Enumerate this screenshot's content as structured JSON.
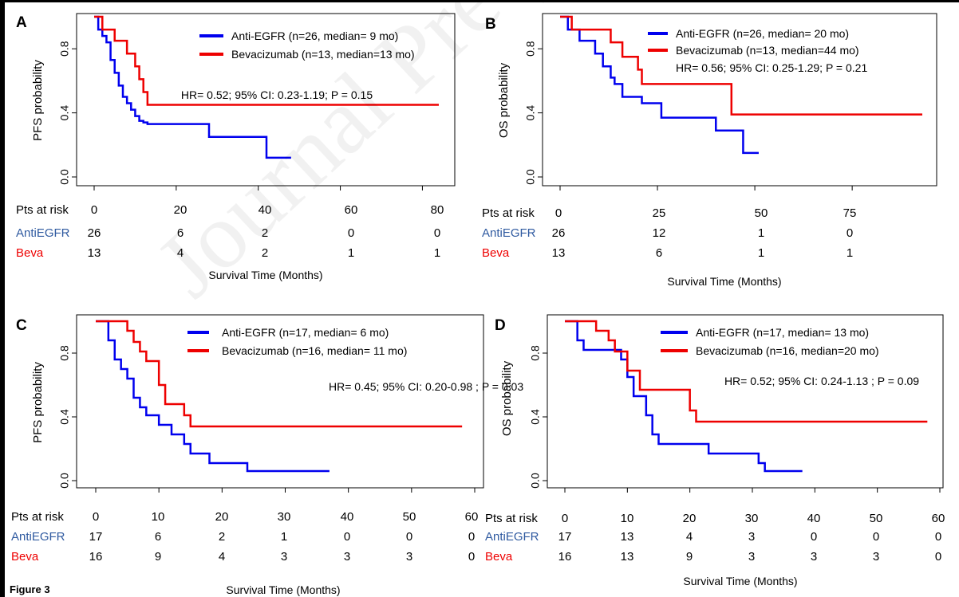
{
  "figure_caption": "Figure 3",
  "watermark": "Journal Pre-proof",
  "colors": {
    "anti_egfr": "#0000ee",
    "beva": "#ee0000",
    "risk_anti": "#2f5aa0",
    "risk_beva": "#ee0000"
  },
  "chart_data": [
    {
      "panel": "A",
      "type": "line",
      "step": true,
      "ylabel": "PFS probability",
      "xlabel": "Survival Time (Months)",
      "xlim": [
        0,
        84
      ],
      "ylim": [
        0,
        1
      ],
      "yticks": [
        "0.0",
        "0.4",
        "0.8"
      ],
      "xticks": [
        "0",
        "20",
        "40",
        "60",
        "80"
      ],
      "legend": [
        "Anti-EGFR (n=26, median= 9 mo)",
        "Bevacizumab (n=13, median=13 mo)"
      ],
      "annotation": "HR= 0.52; 95% CI: 0.23-1.19; P = 0.15",
      "series": [
        {
          "name": "Anti-EGFR (n=26, median= 9 mo)",
          "color": "#0000ee",
          "x": [
            0,
            1,
            2,
            3,
            4,
            5,
            6,
            7,
            8,
            9,
            10,
            11,
            12,
            13,
            28,
            42,
            48
          ],
          "y": [
            1.0,
            0.92,
            0.88,
            0.84,
            0.73,
            0.65,
            0.57,
            0.5,
            0.46,
            0.42,
            0.38,
            0.35,
            0.34,
            0.33,
            0.25,
            0.12,
            0.12
          ]
        },
        {
          "name": "Bevacizumab (n=13, median=13 mo)",
          "color": "#ee0000",
          "x": [
            0,
            2,
            5,
            8,
            10,
            11,
            12,
            13,
            84
          ],
          "y": [
            1.0,
            0.92,
            0.85,
            0.77,
            0.69,
            0.61,
            0.53,
            0.45,
            0.45
          ]
        }
      ],
      "risk_table": {
        "label": "Pts at risk",
        "times": [
          "0",
          "20",
          "40",
          "60",
          "80"
        ],
        "rows": [
          {
            "name": "AntiEGFR",
            "values": [
              "26",
              "6",
              "2",
              "0",
              "0"
            ]
          },
          {
            "name": "Beva",
            "values": [
              "13",
              "4",
              "2",
              "1",
              "1"
            ]
          }
        ]
      }
    },
    {
      "panel": "B",
      "type": "line",
      "step": true,
      "ylabel": "OS probability",
      "xlabel": "Survival Time (Months)",
      "xlim": [
        0,
        93
      ],
      "ylim": [
        0,
        1
      ],
      "yticks": [
        "0.0",
        "0.4",
        "0.8"
      ],
      "xticks": [
        "0",
        "25",
        "50",
        "75"
      ],
      "legend": [
        "Anti-EGFR (n=26, median= 20 mo)",
        "Bevacizumab (n=13, median=44 mo)"
      ],
      "annotation": "HR= 0.56; 95% CI: 0.25-1.29; P = 0.21",
      "series": [
        {
          "name": "Anti-EGFR (n=26, median= 20 mo)",
          "color": "#0000ee",
          "x": [
            0,
            2,
            5,
            9,
            11,
            13,
            14,
            16,
            21,
            26,
            40,
            47,
            51
          ],
          "y": [
            1.0,
            0.92,
            0.85,
            0.77,
            0.69,
            0.62,
            0.58,
            0.5,
            0.46,
            0.37,
            0.29,
            0.15,
            0.15
          ]
        },
        {
          "name": "Bevacizumab (n=13, median=44 mo)",
          "color": "#ee0000",
          "x": [
            0,
            3,
            13,
            16,
            20,
            21,
            44,
            93
          ],
          "y": [
            1.0,
            0.92,
            0.84,
            0.75,
            0.67,
            0.58,
            0.39,
            0.39
          ]
        }
      ],
      "risk_table": {
        "label": "Pts at risk",
        "times": [
          "0",
          "25",
          "50",
          "75"
        ],
        "rows": [
          {
            "name": "AntiEGFR",
            "values": [
              "26",
              "12",
              "1",
              "0"
            ]
          },
          {
            "name": "Beva",
            "values": [
              "13",
              "6",
              "1",
              "1"
            ]
          }
        ]
      }
    },
    {
      "panel": "C",
      "type": "line",
      "step": true,
      "ylabel": "PFS probability",
      "xlabel": "Survival Time (Months)",
      "xlim": [
        0,
        60
      ],
      "ylim": [
        0,
        1
      ],
      "yticks": [
        "0.0",
        "0.4",
        "0.8"
      ],
      "xticks": [
        "0",
        "10",
        "20",
        "30",
        "40",
        "50",
        "60"
      ],
      "legend": [
        "Anti-EGFR (n=17, median= 6 mo)",
        "Bevacizumab (n=16, median= 11 mo)"
      ],
      "annotation": "HR= 0.45; 95% CI: 0.20-0.98 ; P = 0.03",
      "series": [
        {
          "name": "Anti-EGFR (n=17, median= 6 mo)",
          "color": "#0000ee",
          "x": [
            0,
            2,
            3,
            4,
            5,
            6,
            7,
            8,
            10,
            12,
            14,
            15,
            18,
            24,
            37
          ],
          "y": [
            1.0,
            0.88,
            0.76,
            0.7,
            0.64,
            0.52,
            0.46,
            0.41,
            0.35,
            0.29,
            0.23,
            0.17,
            0.11,
            0.06,
            0.06
          ]
        },
        {
          "name": "Bevacizumab (n=16, median= 11 mo)",
          "color": "#ee0000",
          "x": [
            0,
            5,
            6,
            7,
            8,
            10,
            11,
            14,
            15,
            58
          ],
          "y": [
            1.0,
            0.94,
            0.87,
            0.81,
            0.75,
            0.6,
            0.48,
            0.41,
            0.34,
            0.34
          ]
        }
      ],
      "risk_table": {
        "label": "Pts at risk",
        "times": [
          "0",
          "10",
          "20",
          "30",
          "40",
          "50",
          "60"
        ],
        "rows": [
          {
            "name": "AntiEGFR",
            "values": [
              "17",
              "6",
              "2",
              "1",
              "0",
              "0",
              "0"
            ]
          },
          {
            "name": "Beva",
            "values": [
              "16",
              "9",
              "4",
              "3",
              "3",
              "3",
              "0"
            ]
          }
        ]
      }
    },
    {
      "panel": "D",
      "type": "line",
      "step": true,
      "ylabel": "OS probability",
      "xlabel": "Survival Time (Months)",
      "xlim": [
        0,
        60
      ],
      "ylim": [
        0,
        1
      ],
      "yticks": [
        "0.0",
        "0.4",
        "0.8"
      ],
      "xticks": [
        "0",
        "10",
        "20",
        "30",
        "40",
        "50",
        "60"
      ],
      "legend": [
        "Anti-EGFR (n=17, median= 13 mo)",
        "Bevacizumab (n=16, median=20 mo)"
      ],
      "annotation": "HR= 0.52; 95% CI: 0.24-1.13 ; P = 0.09",
      "series": [
        {
          "name": "Anti-EGFR (n=17, median= 13 mo)",
          "color": "#0000ee",
          "x": [
            0,
            2,
            3,
            9,
            10,
            11,
            13,
            14,
            15,
            23,
            31,
            32,
            38
          ],
          "y": [
            1.0,
            0.88,
            0.82,
            0.76,
            0.65,
            0.53,
            0.41,
            0.29,
            0.23,
            0.17,
            0.11,
            0.06,
            0.06
          ]
        },
        {
          "name": "Bevacizumab (n=16, median=20 mo)",
          "color": "#ee0000",
          "x": [
            0,
            5,
            7,
            8,
            10,
            12,
            20,
            21,
            58
          ],
          "y": [
            1.0,
            0.94,
            0.88,
            0.81,
            0.69,
            0.57,
            0.44,
            0.37,
            0.37
          ]
        }
      ],
      "risk_table": {
        "label": "Pts at risk",
        "times": [
          "0",
          "10",
          "20",
          "30",
          "40",
          "50",
          "60"
        ],
        "rows": [
          {
            "name": "AntiEGFR",
            "values": [
              "17",
              "13",
              "4",
              "3",
              "0",
              "0",
              "0"
            ]
          },
          {
            "name": "Beva",
            "values": [
              "16",
              "13",
              "9",
              "3",
              "3",
              "3",
              "0"
            ]
          }
        ]
      }
    }
  ]
}
